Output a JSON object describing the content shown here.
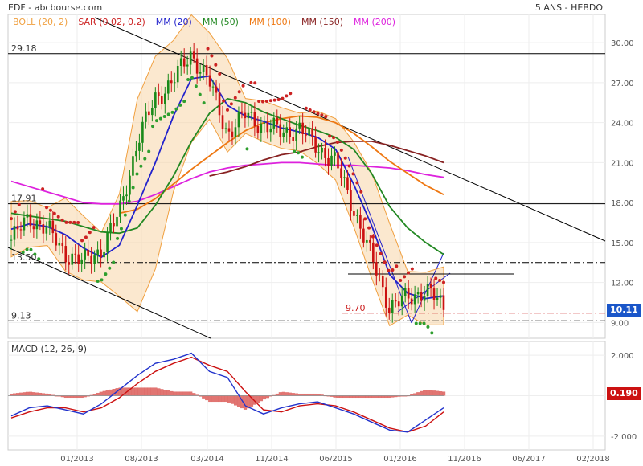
{
  "header": {
    "source": "EDF - abcbourse.com",
    "period": "5 ANS - HEBDO"
  },
  "legend": [
    {
      "label": "BOLL (20, 2)",
      "color": "#f0a040"
    },
    {
      "label": "SAR (0.02, 0.2)",
      "color": "#cc2222"
    },
    {
      "label": "MM (20)",
      "color": "#2222cc"
    },
    {
      "label": "MM (50)",
      "color": "#228822"
    },
    {
      "label": "MM (100)",
      "color": "#ee7711"
    },
    {
      "label": "MM (150)",
      "color": "#882222"
    },
    {
      "label": "MM (200)",
      "color": "#dd22dd"
    }
  ],
  "price_axis": {
    "ticks": [
      "30.00",
      "27.00",
      "24.00",
      "21.00",
      "18.00",
      "15.00",
      "12.00",
      "9.00"
    ],
    "ylim": [
      8.0,
      32.0
    ]
  },
  "macd_axis": {
    "label": "MACD (12, 26, 9)",
    "ticks": [
      "2.000",
      "0.000",
      "-2.000"
    ],
    "ylim": [
      -2.6,
      2.6
    ]
  },
  "x_ticks": [
    "01/2013",
    "08/2013",
    "03/2014",
    "11/2014",
    "06/2015",
    "01/2016",
    "11/2016",
    "06/2017",
    "02/2018"
  ],
  "levels": [
    {
      "label": "29.18",
      "value": 29.18,
      "style": "solid",
      "color": "#000000"
    },
    {
      "label": "17.91",
      "value": 17.91,
      "style": "solid",
      "color": "#000000"
    },
    {
      "label": "13.50",
      "value": 13.5,
      "style": "dashdot",
      "color": "#000000"
    },
    {
      "label": "9.70",
      "value": 9.7,
      "style": "dashdot",
      "color": "#cc2222"
    },
    {
      "label": "9.13",
      "value": 9.13,
      "style": "dashdot",
      "color": "#000000"
    }
  ],
  "last_price": {
    "label": "10.11",
    "value": 10.11,
    "color": "#1a56c9"
  },
  "macd_last": {
    "label": "0.190",
    "value": 0.19,
    "color": "#cc1111"
  },
  "chart_data": {
    "type": "line",
    "title": "EDF - abcbourse.com",
    "subtitle": "5 ANS - HEBDO",
    "x": [
      "2012-07",
      "2012-09",
      "2012-11",
      "2013-01",
      "2013-03",
      "2013-05",
      "2013-07",
      "2013-09",
      "2013-11",
      "2014-01",
      "2014-03",
      "2014-05",
      "2014-07",
      "2014-09",
      "2014-11",
      "2015-01",
      "2015-03",
      "2015-05",
      "2015-07",
      "2015-09",
      "2015-11",
      "2016-01",
      "2016-03",
      "2016-05",
      "2016-07"
    ],
    "series": [
      {
        "name": "close",
        "values": [
          15.2,
          16.9,
          16.0,
          14.2,
          13.5,
          14.5,
          17.2,
          22.6,
          25.8,
          27.2,
          29.2,
          27.0,
          23.2,
          24.6,
          23.8,
          23.3,
          23.5,
          22.2,
          21.0,
          17.6,
          13.8,
          10.2,
          10.8,
          11.5,
          10.11
        ]
      },
      {
        "name": "MM (20)",
        "values": [
          16.0,
          16.4,
          16.2,
          15.6,
          14.6,
          13.9,
          14.8,
          17.8,
          21.0,
          24.5,
          27.3,
          27.5,
          25.3,
          24.5,
          24.1,
          23.6,
          23.3,
          22.9,
          22.0,
          19.4,
          16.3,
          12.6,
          11.2,
          10.8,
          11.0
        ]
      },
      {
        "name": "MM (50)",
        "values": [
          17.2,
          17.0,
          16.8,
          16.6,
          16.2,
          15.8,
          15.7,
          16.1,
          17.8,
          20.0,
          22.6,
          24.7,
          25.8,
          25.5,
          24.8,
          24.3,
          23.8,
          23.4,
          22.9,
          22.0,
          20.2,
          17.7,
          16.1,
          15.0,
          14.1
        ]
      },
      {
        "name": "MM (100)",
        "values": [
          null,
          null,
          null,
          null,
          null,
          null,
          17.2,
          17.5,
          18.3,
          19.4,
          20.5,
          21.5,
          22.5,
          23.4,
          24.0,
          24.3,
          24.5,
          24.4,
          24.0,
          23.2,
          22.2,
          21.1,
          20.2,
          19.3,
          18.6
        ]
      },
      {
        "name": "MM (150)",
        "values": [
          null,
          null,
          null,
          null,
          null,
          null,
          null,
          null,
          null,
          null,
          null,
          20.0,
          20.3,
          20.7,
          21.2,
          21.6,
          21.8,
          22.2,
          22.5,
          22.6,
          22.6,
          22.3,
          21.9,
          21.5,
          21.0
        ]
      },
      {
        "name": "MM (200)",
        "values": [
          19.6,
          19.2,
          18.8,
          18.4,
          18.0,
          17.9,
          17.9,
          18.1,
          18.6,
          19.2,
          19.8,
          20.3,
          20.6,
          20.8,
          20.9,
          21.0,
          21.0,
          20.9,
          20.8,
          20.8,
          20.7,
          20.6,
          20.4,
          20.1,
          19.9
        ]
      },
      {
        "name": "MACD",
        "values": [
          -1.0,
          -0.6,
          -0.5,
          -0.7,
          -0.9,
          -0.4,
          0.3,
          1.0,
          1.6,
          1.8,
          2.1,
          1.2,
          0.9,
          -0.5,
          -0.9,
          -0.6,
          -0.4,
          -0.3,
          -0.6,
          -0.9,
          -1.3,
          -1.7,
          -1.8,
          -1.2,
          -0.6
        ]
      },
      {
        "name": "Signal",
        "values": [
          -1.1,
          -0.8,
          -0.6,
          -0.6,
          -0.8,
          -0.6,
          -0.1,
          0.6,
          1.2,
          1.6,
          1.9,
          1.5,
          1.2,
          0.2,
          -0.7,
          -0.8,
          -0.5,
          -0.4,
          -0.5,
          -0.8,
          -1.2,
          -1.6,
          -1.8,
          -1.5,
          -0.8
        ]
      }
    ],
    "xlabel": "",
    "ylabel": "",
    "ylim": [
      8.0,
      32.0
    ],
    "grid": true
  }
}
